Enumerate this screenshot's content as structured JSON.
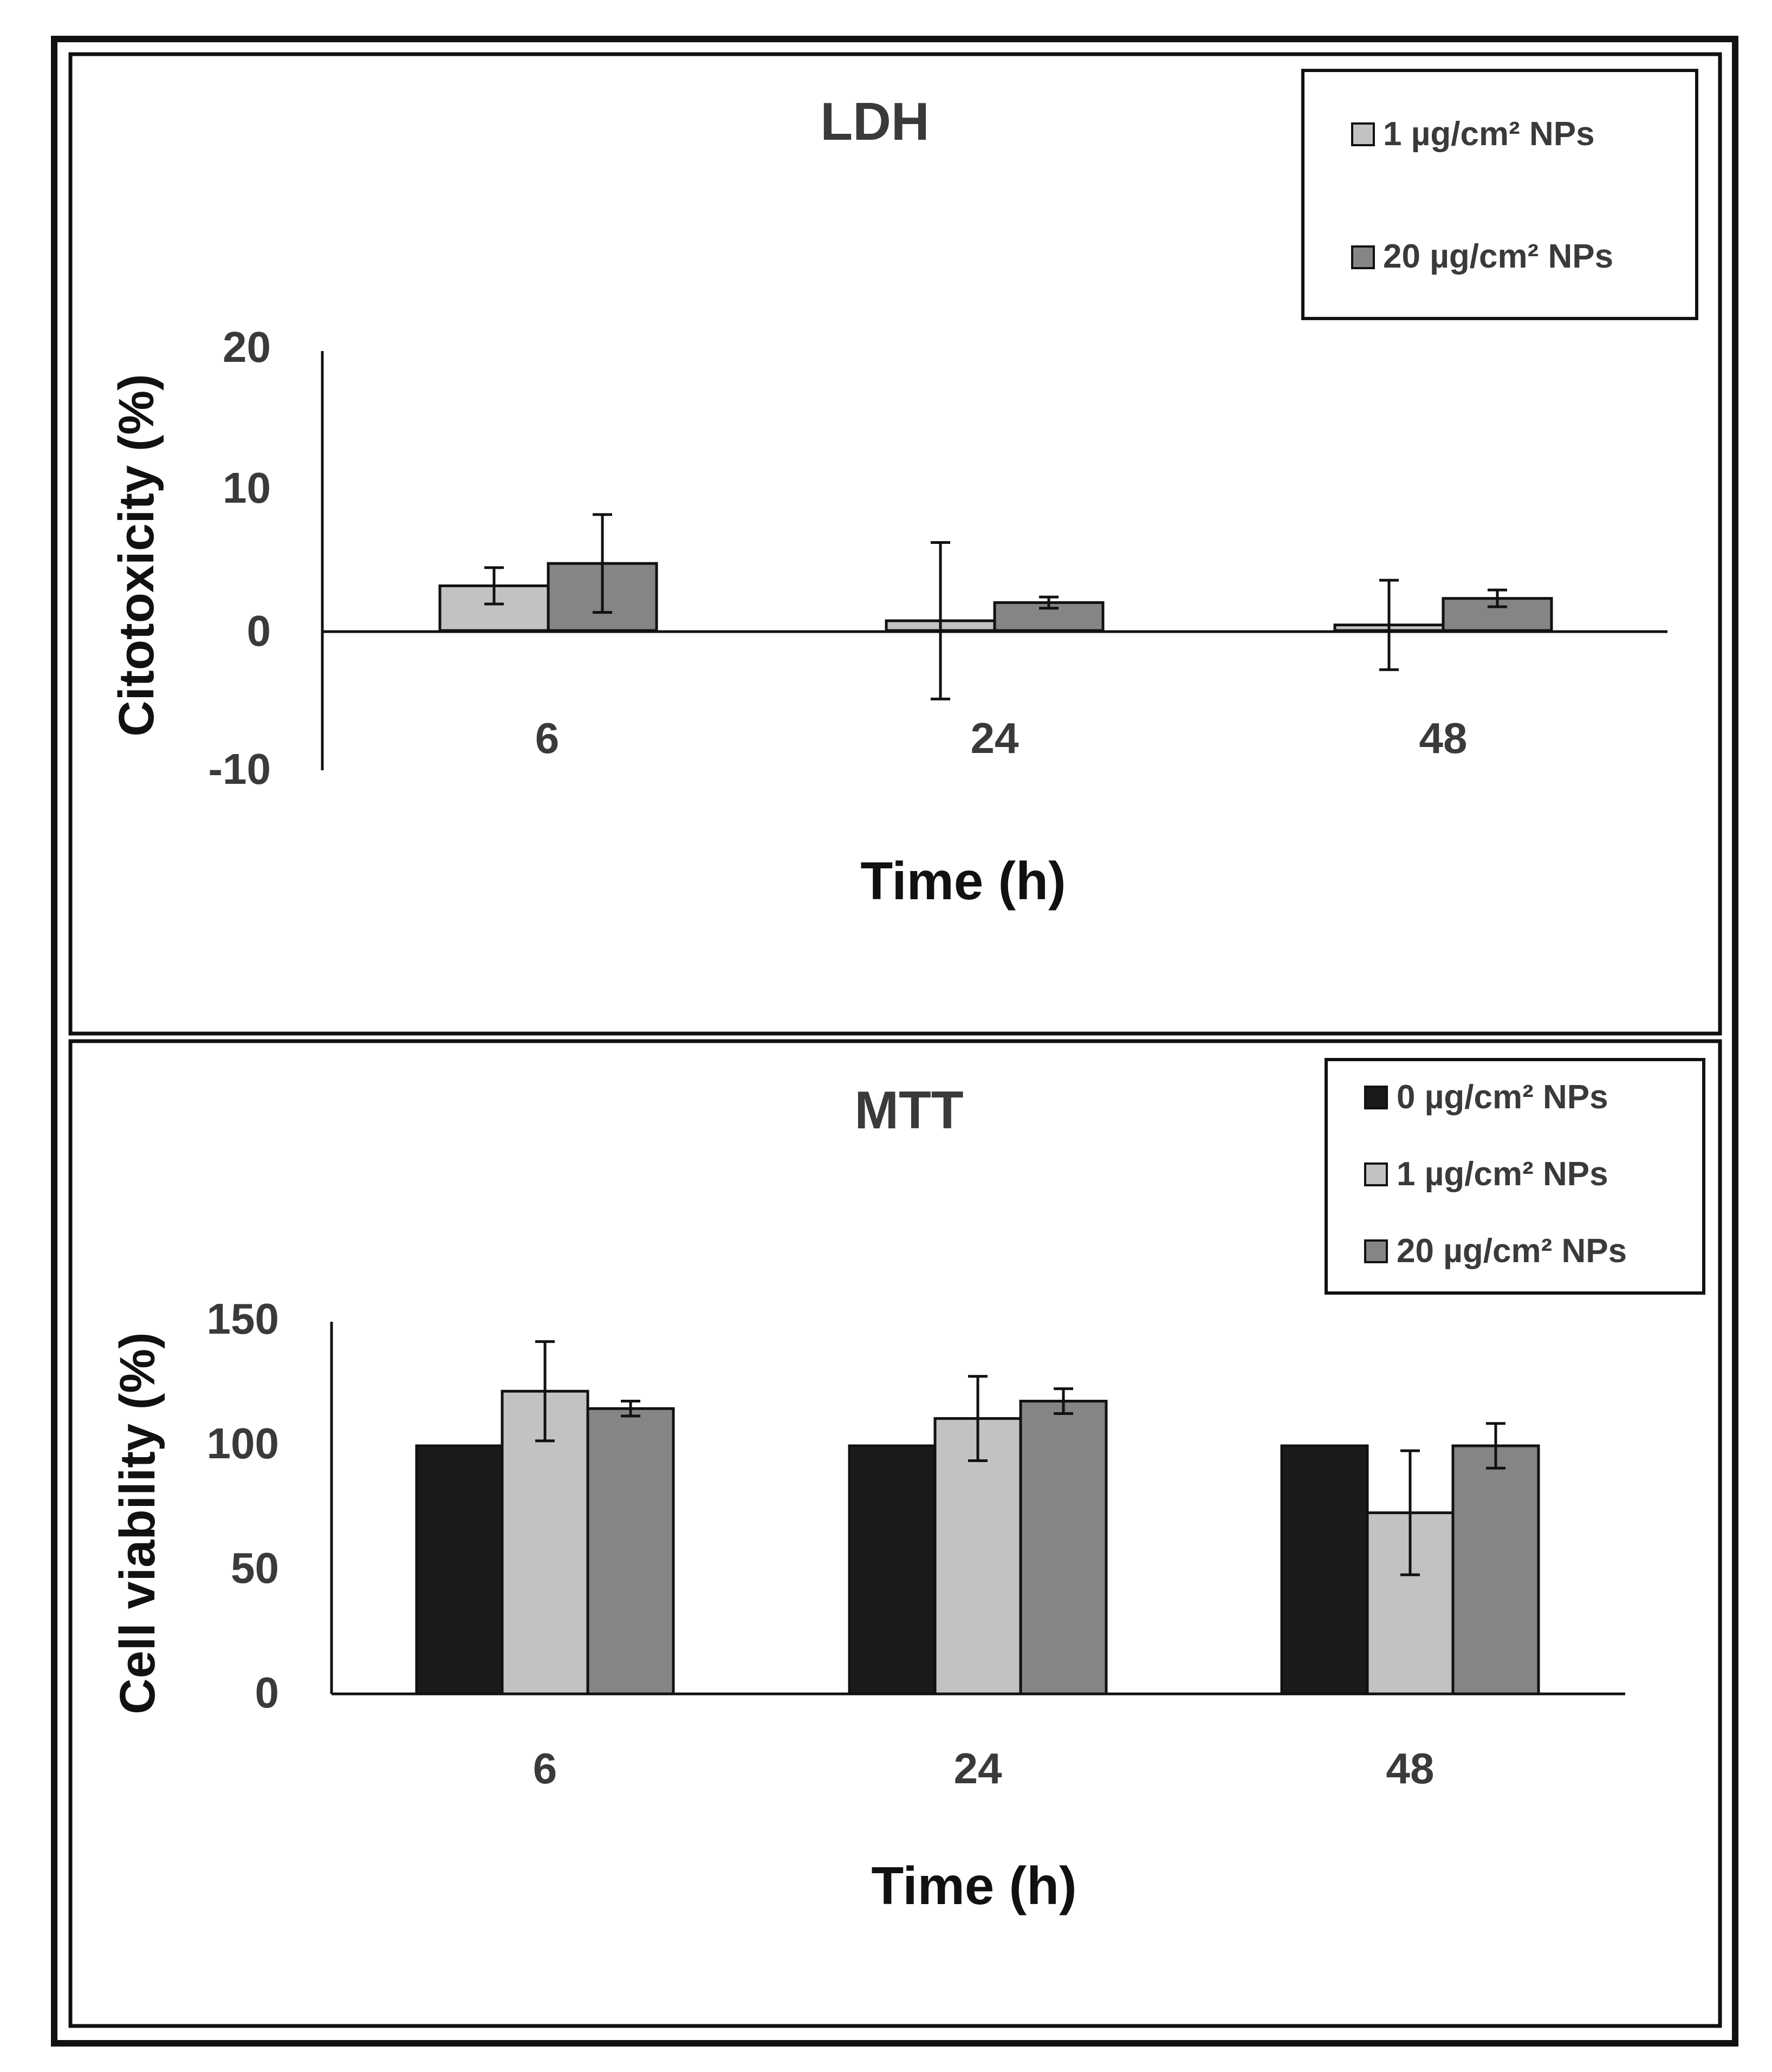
{
  "colors": {
    "black_bar": "#1a1a1a",
    "light_bar": "#c2c2c2",
    "dark_bar": "#858585",
    "frame": "#111111",
    "text": "#3a3a3a"
  },
  "chart_data": [
    {
      "type": "bar",
      "title": "LDH",
      "xlabel": "Time (h)",
      "ylabel": "Citotoxicity (%)",
      "ylim": [
        -10,
        20
      ],
      "yticks": [
        "20",
        "10",
        "0",
        "-10"
      ],
      "categories": [
        "6",
        "24",
        "48"
      ],
      "legend_position": "top-right",
      "series": [
        {
          "name": "1 µg/cm² NPs",
          "color": "#c2c2c2",
          "values": [
            3.2,
            0.7,
            0.4
          ],
          "errors": [
            1.3,
            5.6,
            3.2
          ]
        },
        {
          "name": "20 µg/cm² NPs",
          "color": "#858585",
          "values": [
            4.8,
            2.0,
            2.3
          ],
          "errors": [
            3.5,
            0.4,
            0.6
          ]
        }
      ]
    },
    {
      "type": "bar",
      "title": "MTT",
      "xlabel": "Time (h)",
      "ylabel": "Cell viability (%)",
      "ylim": [
        0,
        150
      ],
      "yticks": [
        "150",
        "100",
        "50",
        "0"
      ],
      "categories": [
        "6",
        "24",
        "48"
      ],
      "legend_position": "top-right",
      "series": [
        {
          "name": "0 µg/cm² NPs",
          "color": "#1a1a1a",
          "values": [
            100,
            100,
            100
          ],
          "errors": [
            0,
            0,
            0
          ]
        },
        {
          "name": "1 µg/cm² NPs",
          "color": "#c2c2c2",
          "values": [
            122,
            111,
            73
          ],
          "errors": [
            20,
            17,
            25
          ]
        },
        {
          "name": "20 µg/cm² NPs",
          "color": "#858585",
          "values": [
            115,
            118,
            100
          ],
          "errors": [
            3,
            5,
            9
          ]
        }
      ]
    }
  ]
}
